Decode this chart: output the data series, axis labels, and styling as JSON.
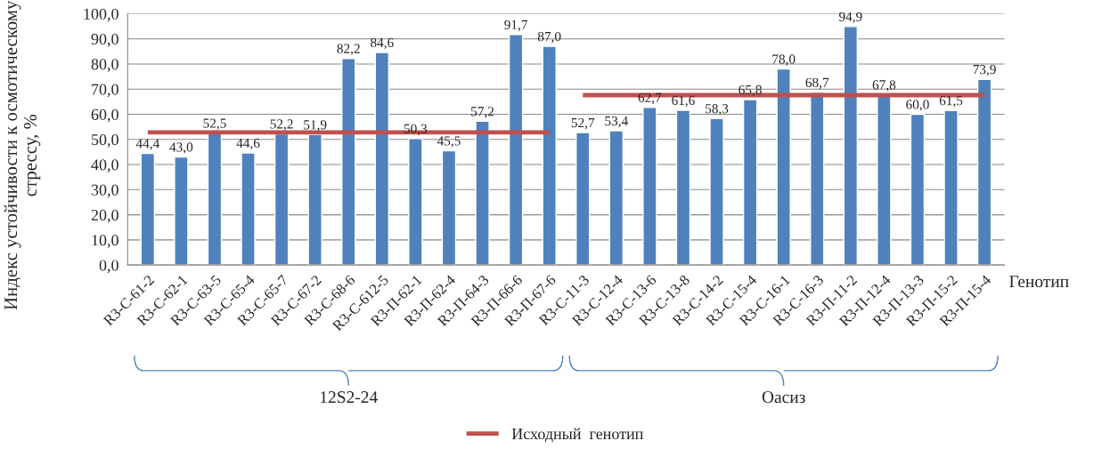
{
  "chart_data": {
    "type": "bar",
    "categories": [
      "R3-С-61-2",
      "R3-С-62-1",
      "R3-С-63-5",
      "R3-С-65-4",
      "R3-С-65-7",
      "R3-С-67-2",
      "R3-С-68-6",
      "R3-С-612-5",
      "R3-П-62-1",
      "R3-П-62-4",
      "R3-П-64-3",
      "R3-П-66-6",
      "R3-П-67-6",
      "R3-С-11-3",
      "R3-С-12-4",
      "R3-С-13-6",
      "R3-С-13-8",
      "R3-С-14-2",
      "R3-С-15-4",
      "R3-С-16-1",
      "R3-С-16-3",
      "R3-П-11-2",
      "R3-П-12-4",
      "R3-П-13-3",
      "R3-П-15-2",
      "R3-П-15-4"
    ],
    "series": [
      {
        "color": "#4f81bd",
        "values": [
          44.4,
          43.0,
          52.5,
          44.6,
          52.2,
          51.9,
          82.2,
          84.6,
          50.3,
          45.5,
          57.2,
          91.7,
          87.0,
          52.7,
          53.4,
          62.7,
          61.6,
          58.3,
          65.8,
          78.0,
          68.7,
          94.9,
          67.8,
          60.0,
          61.5,
          73.9
        ],
        "value_labels": [
          "44,4",
          "43,0",
          "52,5",
          "44,6",
          "52,2",
          "51,9",
          "82,2",
          "84,6",
          "50,3",
          "45,5",
          "57,2",
          "91,7",
          "87,0",
          "52,7",
          "53,4",
          "62,7",
          "61,6",
          "58,3",
          "65,8",
          "78,0",
          "68,7",
          "94,9",
          "67,8",
          "60,0",
          "61,5",
          "73,9"
        ]
      },
      {
        "type": "line",
        "name": "Исходный  генотип",
        "color": "#c0504d",
        "values": [
          52.8,
          52.8,
          52.8,
          52.8,
          52.8,
          52.8,
          52.8,
          52.8,
          52.8,
          52.8,
          52.8,
          52.8,
          52.8,
          null,
          null,
          null,
          null,
          null,
          null,
          null,
          null,
          null,
          null,
          null,
          null,
          null
        ]
      },
      {
        "type": "line",
        "color": "#c0504d",
        "values": [
          null,
          null,
          null,
          null,
          null,
          null,
          null,
          null,
          null,
          null,
          null,
          null,
          null,
          67.6,
          67.6,
          67.6,
          67.6,
          67.6,
          67.6,
          67.6,
          67.6,
          67.6,
          67.6,
          67.6,
          67.6,
          67.6
        ]
      }
    ],
    "xlabel": "Генотип",
    "ylabel": "Индекс устойчивости к осмотическому стрессу, %",
    "ylim": [
      0,
      100
    ],
    "yticks": [
      {
        "value": 0,
        "label": "0,0"
      },
      {
        "value": 10,
        "label": "10,0"
      },
      {
        "value": 20,
        "label": "20,0"
      },
      {
        "value": 30,
        "label": "30,0"
      },
      {
        "value": 40,
        "label": "40,0"
      },
      {
        "value": 50,
        "label": "50,0"
      },
      {
        "value": 60,
        "label": "60,0"
      },
      {
        "value": 70,
        "label": "70,0"
      },
      {
        "value": 80,
        "label": "80,0"
      },
      {
        "value": 90,
        "label": "90,0"
      },
      {
        "value": 100,
        "label": "100,0"
      }
    ],
    "grid": "y",
    "legend": "bottom",
    "annotations": [
      "12S2-24",
      "Оасиз"
    ]
  }
}
